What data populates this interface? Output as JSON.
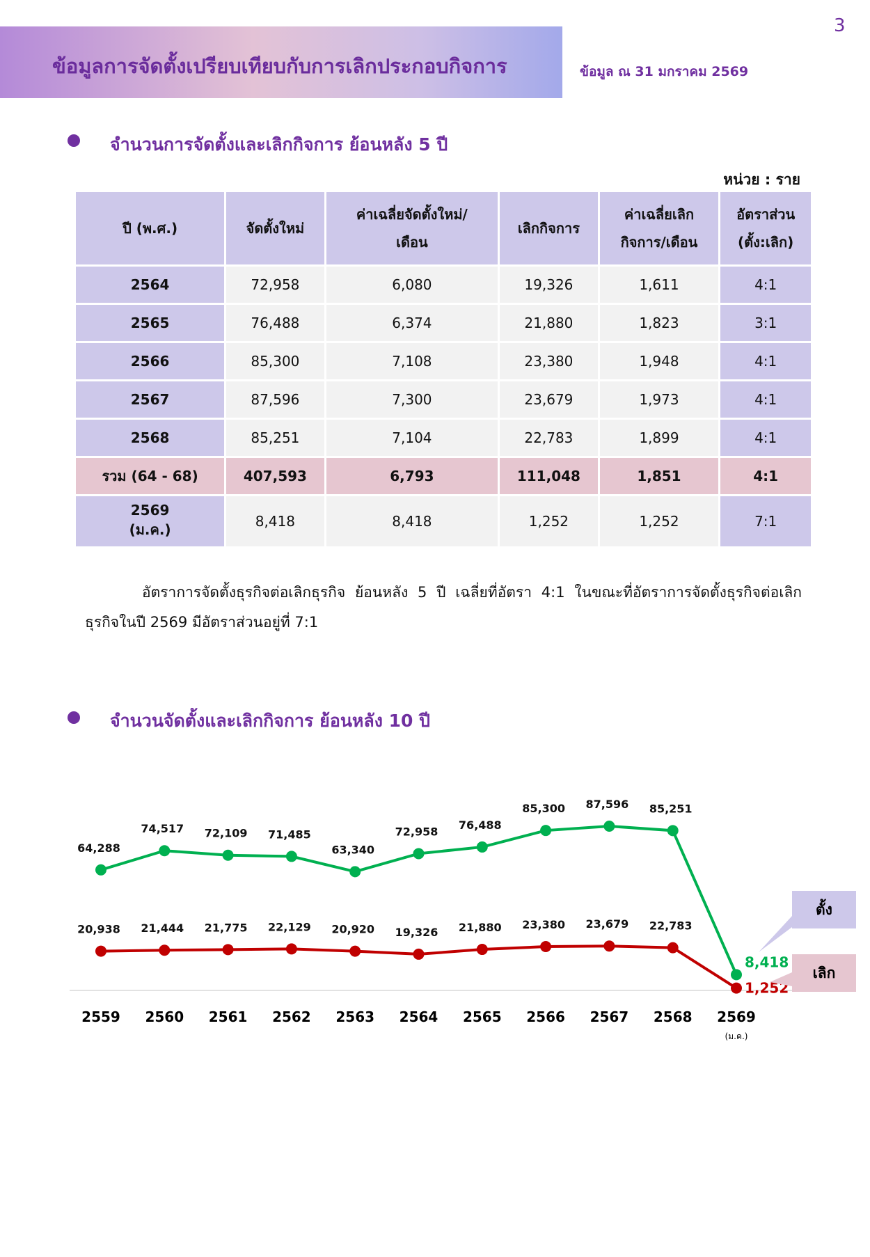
{
  "page_number": "3",
  "header": {
    "title": "ข้อมูลการจัดตั้งเปรียบเทียบกับการเลิกประกอบกิจการ",
    "date_note": "ข้อมูล ณ 31 มกราคม 2569"
  },
  "section1": {
    "heading": "จำนวนการจัดตั้งและเลิกกิจการ ย้อนหลัง 5 ปี",
    "unit": "หน่วย : ราย"
  },
  "table": {
    "header": [
      "ปี (พ.ศ.)",
      "จัดตั้งใหม่",
      "ค่าเฉลี่ยจัดตั้งใหม่/\nเดือน",
      "เลิกกิจการ",
      "ค่าเฉลี่ยเลิก\nกิจการ/เดือน",
      "อัตราส่วน\n(ตั้ง:เลิก)"
    ],
    "rows": [
      [
        "2564",
        "72,958",
        "6,080",
        "19,326",
        "1,611",
        "4:1"
      ],
      [
        "2565",
        "76,488",
        "6,374",
        "21,880",
        "1,823",
        "3:1"
      ],
      [
        "2566",
        "85,300",
        "7,108",
        "23,380",
        "1,948",
        "4:1"
      ],
      [
        "2567",
        "87,596",
        "7,300",
        "23,679",
        "1,973",
        "4:1"
      ],
      [
        "2568",
        "85,251",
        "7,104",
        "22,783",
        "1,899",
        "4:1"
      ],
      [
        "รวม (64 - 68)",
        "407,593",
        "6,793",
        "111,048",
        "1,851",
        "4:1"
      ],
      [
        "2569\n(ม.ค.)",
        "8,418",
        "8,418",
        "1,252",
        "1,252",
        "7:1"
      ]
    ]
  },
  "paragraph": "อัตราการจัดตั้งธุรกิจต่อเลิกธุรกิจ ย้อนหลัง 5 ปี เฉลี่ยที่อัตรา 4:1 ในขณะที่อัตราการจัดตั้งธุรกิจต่อเลิกธุรกิจในปี 2569 มีอัตราส่วนอยู่ที่ 7:1",
  "section2": {
    "heading": "จำนวนจัดตั้งและเลิกกิจการ ย้อนหลัง 10 ปี"
  },
  "chart_data": {
    "type": "line",
    "categories": [
      "2559",
      "2560",
      "2561",
      "2562",
      "2563",
      "2564",
      "2565",
      "2566",
      "2567",
      "2568",
      "2569"
    ],
    "last_category_note": "(ม.ค.)",
    "series": [
      {
        "name": "ตั้ง",
        "color": "#00b050",
        "values": [
          64288,
          74517,
          72109,
          71485,
          63340,
          72958,
          76488,
          85300,
          87596,
          85251,
          8418
        ],
        "value_labels": [
          "64,288",
          "74,517",
          "72,109",
          "71,485",
          "63,340",
          "72,958",
          "76,488",
          "85,300",
          "87,596",
          "85,251",
          "8,418"
        ]
      },
      {
        "name": "เลิก",
        "color": "#c00000",
        "values": [
          20938,
          21444,
          21775,
          22129,
          20920,
          19326,
          21880,
          23380,
          23679,
          22783,
          1252
        ],
        "value_labels": [
          "20,938",
          "21,444",
          "21,775",
          "22,129",
          "20,920",
          "19,326",
          "21,880",
          "23,380",
          "23,679",
          "22,783",
          "1,252"
        ]
      }
    ]
  }
}
